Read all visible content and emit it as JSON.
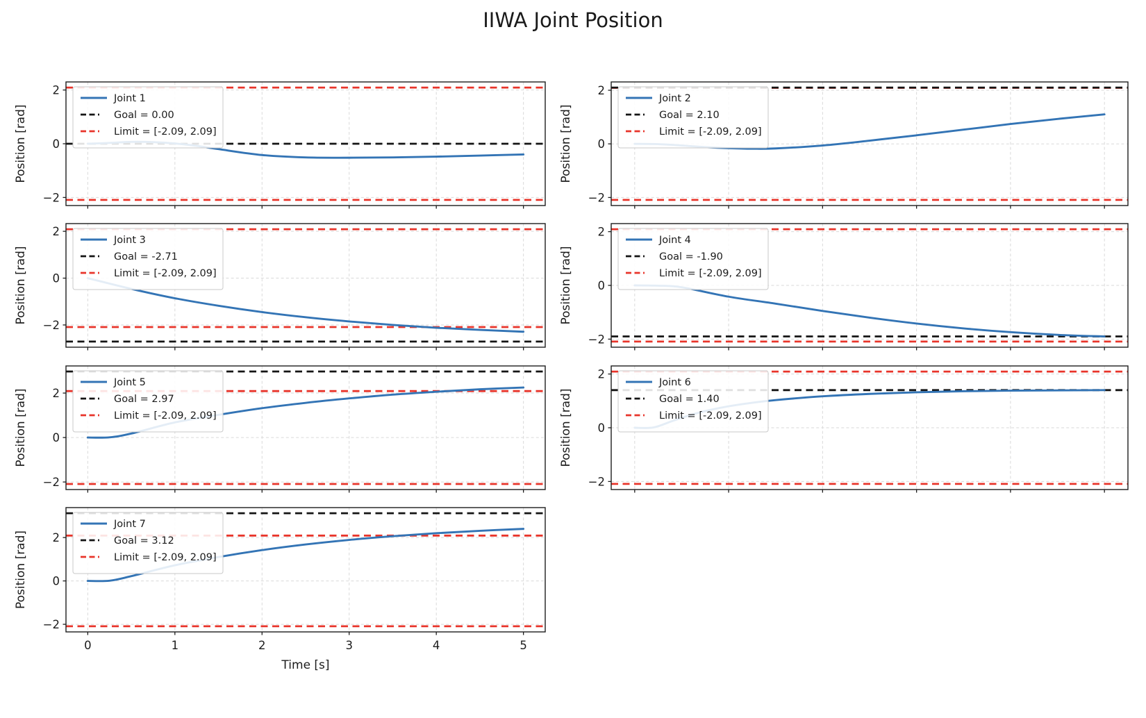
{
  "figure": {
    "title": "IIWA Joint Position",
    "xlabel": "Time [s]",
    "ylabel": "Position [rad]",
    "xticks": [
      0,
      1,
      2,
      3,
      4,
      5
    ],
    "yticks": [
      -2,
      0,
      2
    ],
    "xlim": [
      -0.25,
      5.25
    ],
    "grid": true,
    "legend_position": "upper left",
    "colors": {
      "joint_line": "#3374b5",
      "goal_line": "#141414",
      "limit_line": "#e8342a",
      "grid_line": "#d9d9d9",
      "background": "#ffffff"
    }
  },
  "chart_data": [
    {
      "type": "line",
      "name": "Joint 1",
      "legend": [
        "Joint 1",
        "Goal = 0.00",
        "Limit = [-2.09, 2.09]"
      ],
      "goal": 0.0,
      "limits": [
        -2.09,
        2.09
      ],
      "ylim": [
        -2.3,
        2.3
      ],
      "show_x_tick_labels": false,
      "x": [
        0,
        0.25,
        0.5,
        0.75,
        1,
        1.25,
        1.5,
        2,
        2.5,
        3,
        3.5,
        4,
        4.5,
        5
      ],
      "y": [
        0,
        0.03,
        0.07,
        0.06,
        0.01,
        -0.08,
        -0.2,
        -0.42,
        -0.51,
        -0.52,
        -0.51,
        -0.48,
        -0.44,
        -0.4
      ]
    },
    {
      "type": "line",
      "name": "Joint 2",
      "legend": [
        "Joint 2",
        "Goal = 2.10",
        "Limit = [-2.09, 2.09]"
      ],
      "goal": 2.1,
      "limits": [
        -2.09,
        2.09
      ],
      "ylim": [
        -2.3,
        2.31
      ],
      "show_x_tick_labels": false,
      "x": [
        0,
        0.25,
        0.5,
        0.75,
        1,
        1.25,
        1.5,
        2,
        2.5,
        3,
        3.5,
        4,
        4.5,
        5
      ],
      "y": [
        0,
        -0.01,
        -0.06,
        -0.12,
        -0.16,
        -0.18,
        -0.17,
        -0.06,
        0.12,
        0.32,
        0.53,
        0.74,
        0.93,
        1.1
      ]
    },
    {
      "type": "line",
      "name": "Joint 3",
      "legend": [
        "Joint 3",
        "Goal = -2.71",
        "Limit = [-2.09, 2.09]"
      ],
      "goal": -2.71,
      "limits": [
        -2.09,
        2.09
      ],
      "ylim": [
        -2.95,
        2.33
      ],
      "show_x_tick_labels": false,
      "x": [
        0,
        0.5,
        1,
        1.5,
        2,
        2.5,
        3,
        3.5,
        4,
        4.5,
        5
      ],
      "y": [
        0,
        -0.46,
        -0.86,
        -1.18,
        -1.45,
        -1.67,
        -1.85,
        -2.0,
        -2.12,
        -2.21,
        -2.29
      ]
    },
    {
      "type": "line",
      "name": "Joint 4",
      "legend": [
        "Joint 4",
        "Goal = -1.90",
        "Limit = [-2.09, 2.09]"
      ],
      "goal": -1.9,
      "limits": [
        -2.09,
        2.09
      ],
      "ylim": [
        -2.3,
        2.3
      ],
      "show_x_tick_labels": false,
      "x": [
        0,
        0.25,
        0.5,
        1,
        1.5,
        2,
        2.5,
        3,
        3.5,
        4,
        4.5,
        5
      ],
      "y": [
        0,
        -0.01,
        -0.07,
        -0.42,
        -0.68,
        -0.95,
        -1.2,
        -1.42,
        -1.6,
        -1.74,
        -1.84,
        -1.9
      ]
    },
    {
      "type": "line",
      "name": "Joint 5",
      "legend": [
        "Joint 5",
        "Goal = 2.97",
        "Limit = [-2.09, 2.09]"
      ],
      "goal": 2.97,
      "limits": [
        -2.09,
        2.09
      ],
      "ylim": [
        -2.34,
        3.22
      ],
      "show_x_tick_labels": false,
      "x": [
        0,
        0.25,
        0.5,
        1,
        1.5,
        2,
        2.5,
        3,
        3.5,
        4,
        4.5,
        5
      ],
      "y": [
        0,
        0.01,
        0.18,
        0.68,
        1.02,
        1.32,
        1.56,
        1.76,
        1.93,
        2.06,
        2.17,
        2.25
      ]
    },
    {
      "type": "line",
      "name": "Joint 6",
      "legend": [
        "Joint 6",
        "Goal = 1.40",
        "Limit = [-2.09, 2.09]"
      ],
      "goal": 1.4,
      "limits": [
        -2.09,
        2.09
      ],
      "ylim": [
        -2.3,
        2.3
      ],
      "show_x_tick_labels": false,
      "x": [
        0,
        0.2,
        0.4,
        0.6,
        0.8,
        1,
        1.25,
        1.5,
        2,
        2.5,
        3,
        3.5,
        4,
        4.5,
        5
      ],
      "y": [
        0,
        0.01,
        0.25,
        0.48,
        0.66,
        0.8,
        0.93,
        1.03,
        1.17,
        1.26,
        1.32,
        1.36,
        1.38,
        1.39,
        1.4
      ]
    },
    {
      "type": "line",
      "name": "Joint 7",
      "legend": [
        "Joint 7",
        "Goal = 3.12",
        "Limit = [-2.09, 2.09]"
      ],
      "goal": 3.12,
      "limits": [
        -2.09,
        2.09
      ],
      "ylim": [
        -2.35,
        3.38
      ],
      "show_x_tick_labels": true,
      "x": [
        0,
        0.25,
        0.5,
        1,
        1.5,
        2,
        2.5,
        3,
        3.5,
        4,
        4.5,
        5
      ],
      "y": [
        0,
        0.01,
        0.22,
        0.72,
        1.1,
        1.42,
        1.68,
        1.89,
        2.06,
        2.2,
        2.31,
        2.4
      ]
    }
  ]
}
